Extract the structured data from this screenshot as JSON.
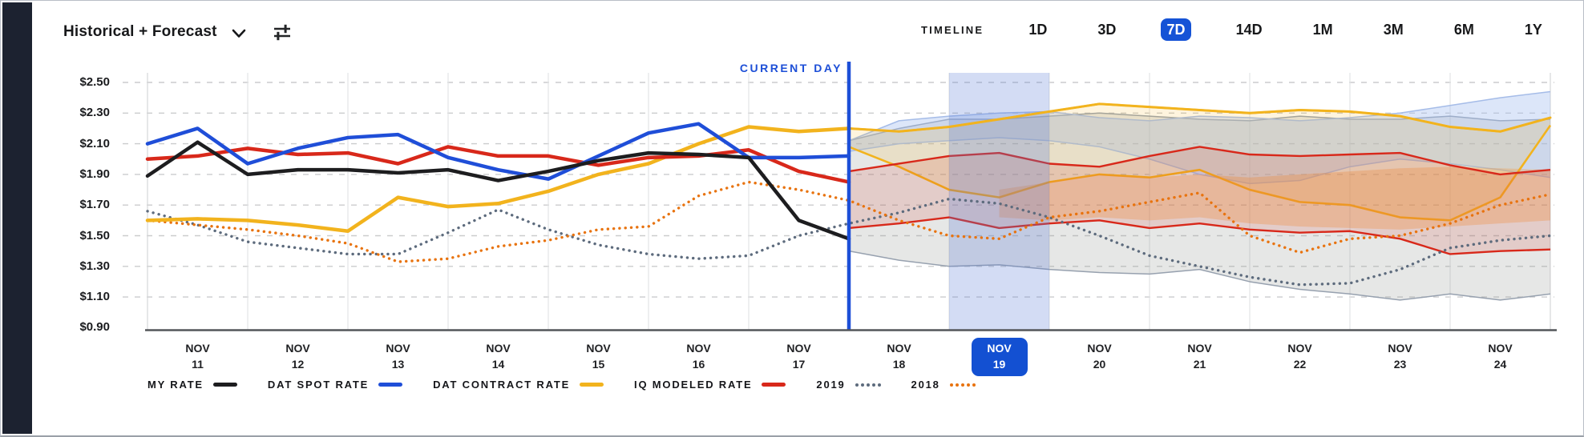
{
  "header": {
    "view_selector_label": "Historical + Forecast",
    "timeline_label": "TIMELINE",
    "timeline_options": [
      "1D",
      "3D",
      "7D",
      "14D",
      "1M",
      "3M",
      "6M",
      "1Y"
    ],
    "timeline_selected": "7D"
  },
  "colors": {
    "accent_blue": "#1d4fd7",
    "button_blue": "#1553d6",
    "selected_day_blue": "#1350d2",
    "rail_dark": "#1c2230",
    "my_rate": "#1d1d1f",
    "dat_spot": "#1f4ed8",
    "dat_contract": "#f2b31d",
    "iq_modeled": "#d8281a",
    "y2019": "#5d6b7d",
    "y2018": "#e8730f"
  },
  "legend": {
    "items": [
      {
        "label": "MY RATE",
        "swatch": "solid",
        "color": "#1d1d1f"
      },
      {
        "label": "DAT SPOT RATE",
        "swatch": "solid",
        "color": "#1f4ed8"
      },
      {
        "label": "DAT CONTRACT RATE",
        "swatch": "solid",
        "color": "#f2b31d"
      },
      {
        "label": "IQ MODELED RATE",
        "swatch": "solid",
        "color": "#d8281a"
      },
      {
        "label": "2019",
        "swatch": "dotted",
        "color": "#5d6b7d"
      },
      {
        "label": "2018",
        "swatch": "dotted",
        "color": "#e8730f"
      }
    ]
  },
  "chart_data": {
    "type": "line",
    "title": "",
    "current_day_label": "CURRENT DAY",
    "x_unit": "half-day steps, Nov 11 start-of-day through Nov 25 boundary",
    "x_labels": [
      {
        "month": "NOV",
        "day": "11"
      },
      {
        "month": "NOV",
        "day": "12"
      },
      {
        "month": "NOV",
        "day": "13"
      },
      {
        "month": "NOV",
        "day": "14"
      },
      {
        "month": "NOV",
        "day": "15"
      },
      {
        "month": "NOV",
        "day": "16"
      },
      {
        "month": "NOV",
        "day": "17"
      },
      {
        "month": "NOV",
        "day": "18"
      },
      {
        "month": "NOV",
        "day": "19",
        "selected": true
      },
      {
        "month": "NOV",
        "day": "20"
      },
      {
        "month": "NOV",
        "day": "21"
      },
      {
        "month": "NOV",
        "day": "22"
      },
      {
        "month": "NOV",
        "day": "23"
      },
      {
        "month": "NOV",
        "day": "24"
      }
    ],
    "selected_day_index": 8,
    "y_ticks": [
      {
        "label": "$2.50",
        "value": 2.5
      },
      {
        "label": "$2.30",
        "value": 2.3
      },
      {
        "label": "$2.10",
        "value": 2.1
      },
      {
        "label": "$1.90",
        "value": 1.9
      },
      {
        "label": "$1.70",
        "value": 1.7
      },
      {
        "label": "$1.50",
        "value": 1.5
      },
      {
        "label": "$1.30",
        "value": 1.3
      },
      {
        "label": "$1.10",
        "value": 1.1
      },
      {
        "label": "$0.90",
        "value": 0.9
      }
    ],
    "ylim": [
      0.9,
      2.5
    ],
    "grid": true,
    "legend_position": "bottom",
    "current_day_index": 14,
    "series": [
      {
        "name": "2019",
        "color": "#5d6b7d",
        "style": "dotted",
        "width": 3.4,
        "start": 0,
        "values": [
          1.66,
          1.57,
          1.46,
          1.42,
          1.38,
          1.38,
          1.52,
          1.67,
          1.54,
          1.44,
          1.38,
          1.35,
          1.37,
          1.5,
          1.58,
          1.65,
          1.74,
          1.71,
          1.62,
          1.5,
          1.37,
          1.3,
          1.23,
          1.18,
          1.19,
          1.28,
          1.42,
          1.47,
          1.5
        ]
      },
      {
        "name": "2018",
        "color": "#e8730f",
        "style": "dotted",
        "width": 3.4,
        "start": 0,
        "values": [
          1.6,
          1.57,
          1.54,
          1.5,
          1.45,
          1.33,
          1.35,
          1.43,
          1.47,
          1.54,
          1.56,
          1.76,
          1.85,
          1.8,
          1.73,
          1.6,
          1.5,
          1.48,
          1.62,
          1.66,
          1.72,
          1.78,
          1.5,
          1.39,
          1.48,
          1.5,
          1.58,
          1.7,
          1.77
        ]
      },
      {
        "name": "DAT CONTRACT RATE",
        "color": "#f2b31d",
        "style": "solid",
        "width": 4.5,
        "forecast_width": 3,
        "start": 0,
        "values": [
          1.6,
          1.61,
          1.6,
          1.57,
          1.53,
          1.75,
          1.69,
          1.71,
          1.79,
          1.9,
          1.97,
          2.1,
          2.21,
          2.18,
          2.2,
          2.18,
          2.21,
          2.26,
          2.31,
          2.36,
          2.34,
          2.32,
          2.3,
          2.32,
          2.31,
          2.28,
          2.21,
          2.18,
          2.27
        ]
      },
      {
        "name": "IQ MODELED RATE",
        "color": "#d8281a",
        "style": "solid",
        "width": 4.5,
        "start": 0,
        "values": [
          2.0,
          2.02,
          2.07,
          2.03,
          2.04,
          1.97,
          2.08,
          2.02,
          2.02,
          1.96,
          2.01,
          2.02,
          2.06,
          1.92,
          1.85
        ]
      },
      {
        "name": "DAT SPOT RATE",
        "color": "#1f4ed8",
        "style": "solid",
        "width": 4.5,
        "start": 0,
        "values": [
          2.1,
          2.2,
          1.97,
          2.07,
          2.14,
          2.16,
          2.01,
          1.93,
          1.87,
          2.02,
          2.17,
          2.23,
          2.01,
          2.01,
          2.02
        ]
      },
      {
        "name": "MY RATE",
        "color": "#1d1d1f",
        "style": "solid",
        "width": 4.5,
        "start": 0,
        "values": [
          1.89,
          2.11,
          1.9,
          1.93,
          1.93,
          1.91,
          1.93,
          1.86,
          1.92,
          1.99,
          2.04,
          2.03,
          2.01,
          1.6,
          1.48
        ]
      }
    ],
    "forecast_bands": [
      {
        "name": "dat-spot-range-wide",
        "fill": "rgba(150,156,152,0.24)",
        "stroke": "#97a1af",
        "stroke_width": 1.5,
        "start": 14,
        "top": [
          2.12,
          2.2,
          2.26,
          2.26,
          2.28,
          2.3,
          2.28,
          2.26,
          2.25,
          2.28,
          2.26,
          2.26,
          2.28,
          2.25,
          2.26
        ],
        "bottom": [
          1.4,
          1.34,
          1.3,
          1.31,
          1.28,
          1.26,
          1.25,
          1.28,
          1.2,
          1.15,
          1.12,
          1.08,
          1.12,
          1.08,
          1.12
        ]
      },
      {
        "name": "dat-spot-range-blue",
        "fill": "rgba(167,193,240,0.40)",
        "stroke": "#a5bce8",
        "stroke_width": 1.5,
        "start": 14,
        "top": [
          2.12,
          2.25,
          2.28,
          2.3,
          2.31,
          2.27,
          2.25,
          2.28,
          2.27,
          2.25,
          2.27,
          2.3,
          2.35,
          2.4,
          2.44
        ],
        "bottom": [
          2.05,
          2.1,
          2.12,
          2.14,
          2.12,
          2.08,
          2.0,
          1.9,
          1.84,
          1.86,
          1.95,
          2.0,
          1.97,
          1.93,
          1.88
        ]
      },
      {
        "name": "dat-contract-range",
        "fill": "rgba(247,183,32,0.15)",
        "stroke": "#f2b31d",
        "stroke_width": 2.6,
        "start": 14,
        "top": [
          2.2,
          2.18,
          2.21,
          2.26,
          2.31,
          2.36,
          2.34,
          2.32,
          2.3,
          2.32,
          2.31,
          2.28,
          2.21,
          2.18,
          2.27
        ],
        "bottom": [
          2.08,
          1.95,
          1.8,
          1.75,
          1.85,
          1.9,
          1.88,
          1.93,
          1.8,
          1.72,
          1.7,
          1.62,
          1.6,
          1.75,
          2.22
        ]
      },
      {
        "name": "y2018-range",
        "fill": "rgba(243,152,62,0.32)",
        "stroke": "none",
        "stroke_width": 0,
        "start": 17,
        "top": [
          1.8,
          1.85,
          1.9,
          1.88,
          1.9,
          1.88,
          1.9,
          1.92,
          1.94,
          1.95,
          1.94,
          1.93
        ],
        "bottom": [
          1.62,
          1.6,
          1.62,
          1.6,
          1.62,
          1.58,
          1.56,
          1.55,
          1.54,
          1.56,
          1.58,
          1.6
        ]
      },
      {
        "name": "iq-modeled-range",
        "fill": "rgba(216,45,30,0.14)",
        "stroke": "#d8281a",
        "stroke_width": 2.4,
        "start": 14,
        "top": [
          1.92,
          1.97,
          2.02,
          2.04,
          1.97,
          1.95,
          2.02,
          2.08,
          2.03,
          2.02,
          2.03,
          2.04,
          1.96,
          1.9,
          1.93
        ],
        "bottom": [
          1.55,
          1.58,
          1.62,
          1.55,
          1.58,
          1.6,
          1.55,
          1.58,
          1.54,
          1.52,
          1.53,
          1.48,
          1.38,
          1.4,
          1.41
        ]
      }
    ],
    "selected_day_highlight_color": "rgba(93,124,214,0.27)"
  }
}
